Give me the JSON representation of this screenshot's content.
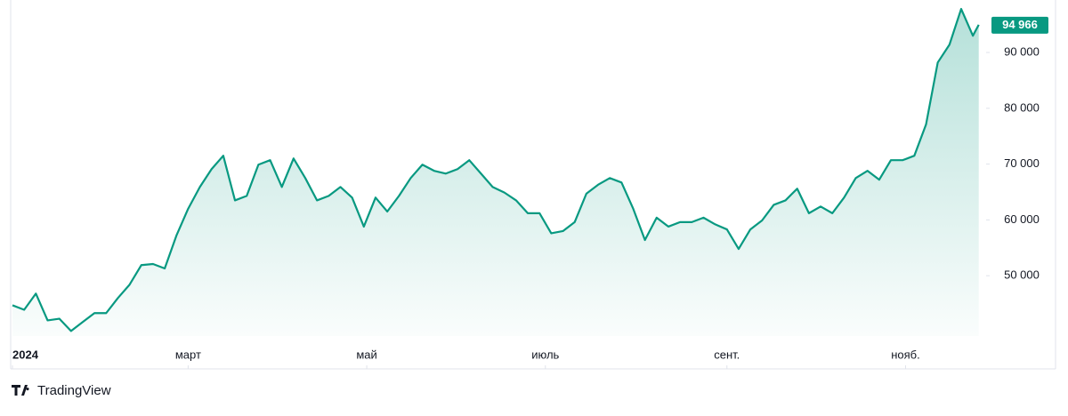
{
  "chart_data": {
    "type": "area",
    "color": "#089981",
    "x": [
      0,
      4,
      8,
      12,
      16,
      20,
      24,
      28,
      32,
      36,
      40,
      44,
      48,
      52,
      56,
      60,
      64,
      68,
      72,
      76,
      80,
      84,
      88,
      92,
      96,
      100,
      104,
      108,
      112,
      116,
      120,
      124,
      128,
      132,
      136,
      140,
      144,
      148,
      152,
      156,
      160,
      164,
      168,
      172,
      176,
      180,
      184,
      188,
      192,
      196,
      200,
      204,
      208,
      212,
      216,
      220,
      224,
      228,
      232,
      236,
      240,
      244,
      248,
      252,
      256,
      260,
      264,
      268,
      272,
      276,
      280,
      284,
      288,
      292,
      296,
      300,
      304,
      308,
      312,
      316,
      320,
      324,
      328,
      330
    ],
    "values": [
      44700,
      43900,
      46800,
      42000,
      42300,
      40100,
      41700,
      43300,
      43300,
      46000,
      48400,
      51900,
      52100,
      51300,
      57200,
      62000,
      65900,
      69100,
      71500,
      63500,
      64300,
      69900,
      70700,
      65900,
      71000,
      67500,
      63500,
      64300,
      65900,
      64000,
      58800,
      64000,
      61500,
      64300,
      67500,
      69900,
      68800,
      68300,
      69100,
      70700,
      68300,
      65900,
      64900,
      63500,
      61200,
      61200,
      57600,
      58000,
      59600,
      64700,
      66300,
      67500,
      66700,
      62000,
      56400,
      60400,
      58800,
      59600,
      59600,
      60400,
      59200,
      58300,
      54800,
      58300,
      59900,
      62700,
      63500,
      65600,
      61200,
      62400,
      61200,
      64000,
      67500,
      68800,
      67200,
      70700,
      70700,
      71500,
      77100,
      88200,
      91400,
      97800,
      93000,
      94966
    ],
    "value_labels": [
      null,
      null,
      null,
      null,
      null,
      null,
      null,
      null,
      null,
      null,
      null,
      null,
      null,
      null,
      null,
      null,
      null,
      null,
      null,
      null,
      null,
      null,
      null,
      null,
      null,
      null,
      null,
      null,
      null,
      null,
      null,
      null,
      null,
      null,
      null,
      null,
      null,
      null,
      null,
      null,
      null,
      null,
      null,
      null,
      null,
      null,
      null,
      null,
      null,
      null,
      null,
      null,
      null,
      null,
      null,
      null,
      null,
      null,
      null,
      null,
      null,
      null,
      null,
      null,
      null,
      null,
      null,
      null,
      null,
      null,
      null,
      null,
      null,
      null,
      null,
      null,
      null,
      null,
      null,
      null,
      null,
      null,
      null,
      "94 966"
    ],
    "xlim": [
      0,
      331
    ],
    "xticks": [
      {
        "value": 0,
        "label": "2024"
      },
      {
        "value": 60,
        "label": "март"
      },
      {
        "value": 121,
        "label": "май"
      },
      {
        "value": 182,
        "label": "июль"
      },
      {
        "value": 244,
        "label": "сент."
      },
      {
        "value": 305,
        "label": "нояб."
      }
    ],
    "ylim": [
      39200,
      99400
    ],
    "yticks": [
      {
        "value": 50000,
        "label": "50 000"
      },
      {
        "value": 60000,
        "label": "60 000"
      },
      {
        "value": 70000,
        "label": "70 000"
      },
      {
        "value": 80000,
        "label": "80 000"
      },
      {
        "value": 90000,
        "label": "90 000"
      }
    ]
  },
  "footer": {
    "brand": "TradingView"
  }
}
